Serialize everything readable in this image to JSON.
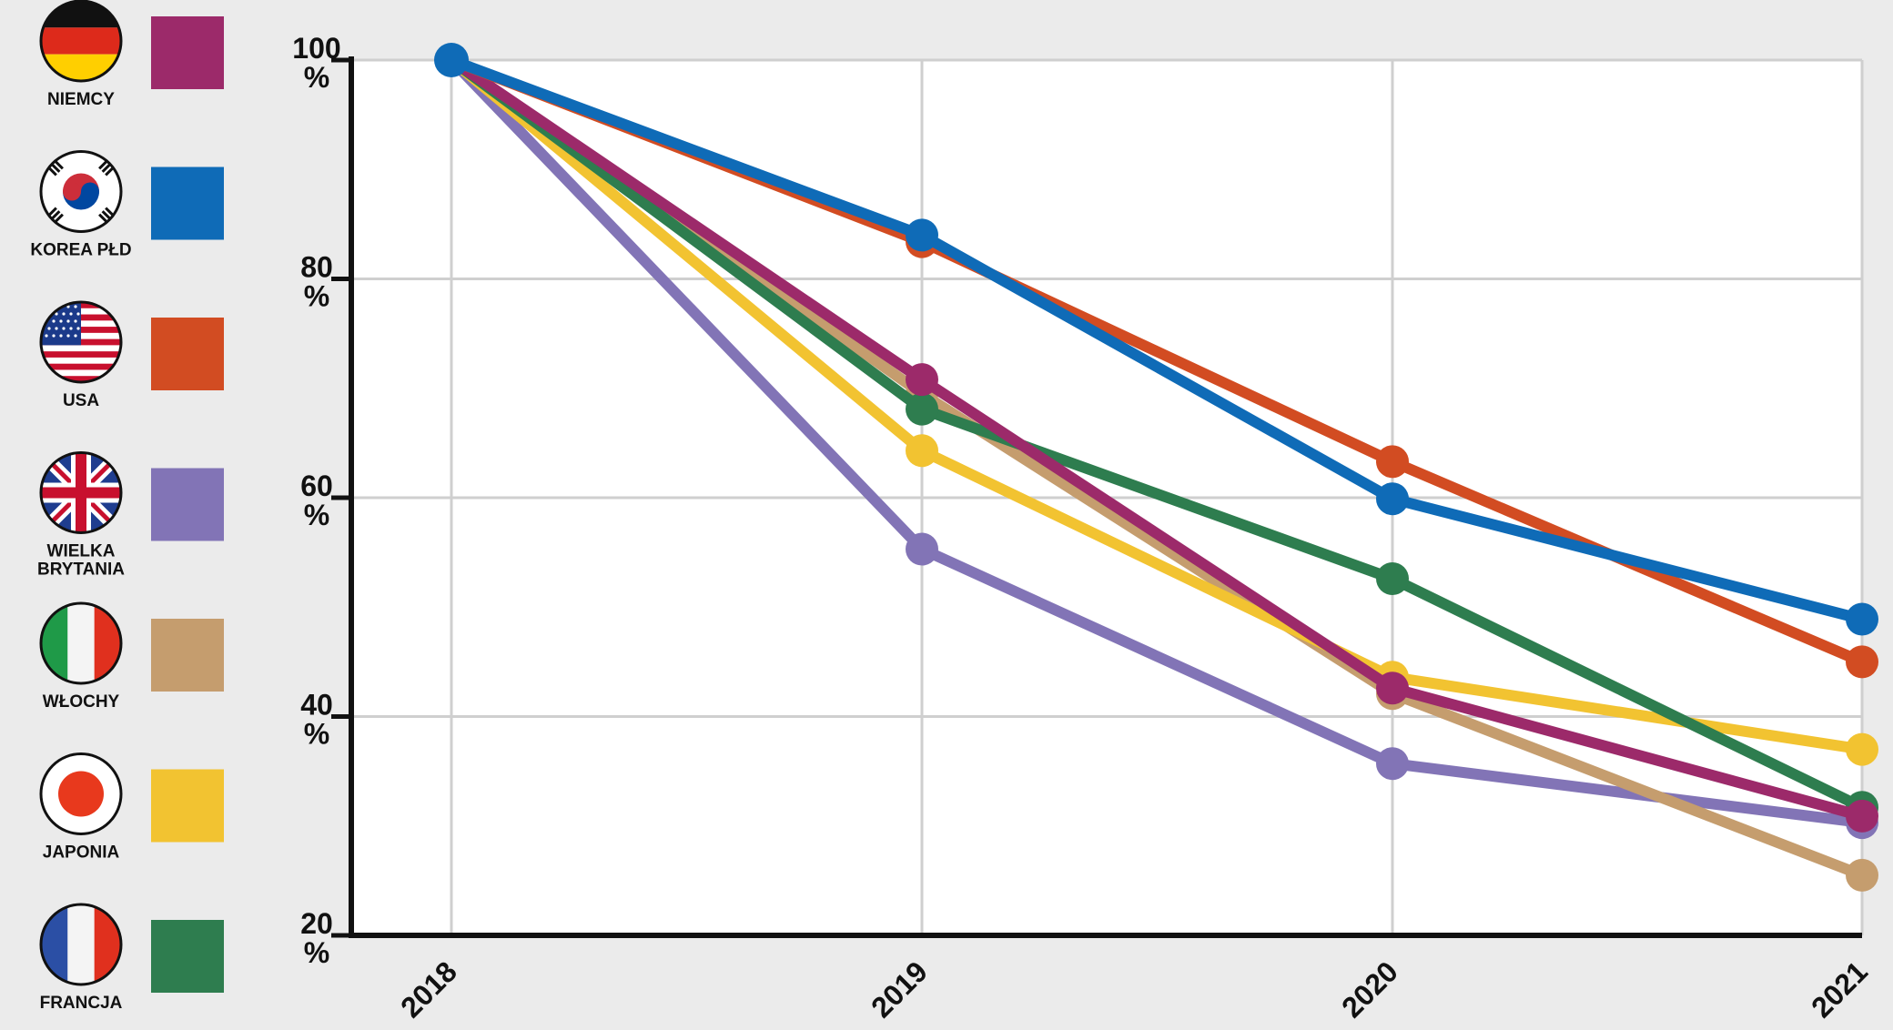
{
  "chart_data": {
    "type": "line",
    "x": [
      "2018",
      "2019",
      "2020",
      "2021"
    ],
    "ylim": [
      20,
      100
    ],
    "yticks": [
      100,
      80,
      60,
      40,
      20
    ],
    "ytick_unit": "%",
    "grid": true,
    "legend_position": "left",
    "series": [
      {
        "name": "NIEMCY",
        "flag": "germany-flag",
        "color": "#9c2a6a",
        "values": [
          100,
          70.8,
          42.6,
          30.9
        ]
      },
      {
        "name": "KOREA PŁD",
        "flag": "south-korea-flag",
        "color": "#0f6bb7",
        "values": [
          100,
          84.0,
          59.9,
          48.9
        ]
      },
      {
        "name": "USA",
        "flag": "usa-flag",
        "color": "#d24c22",
        "values": [
          100,
          83.4,
          63.3,
          45.0
        ]
      },
      {
        "name": "WIELKA BRYTANIA",
        "flag": "uk-flag",
        "color": "#8274b6",
        "values": [
          100,
          55.3,
          35.7,
          30.3
        ]
      },
      {
        "name": "WŁOCHY",
        "flag": "italy-flag",
        "color": "#c59d6e",
        "values": [
          100,
          69.5,
          42.1,
          25.5
        ]
      },
      {
        "name": "JAPONIA",
        "flag": "japan-flag",
        "color": "#f2c331",
        "values": [
          100,
          64.3,
          43.6,
          37.0
        ]
      },
      {
        "name": "FRANCJA",
        "flag": "france-flag",
        "color": "#2e7d4f",
        "values": [
          100,
          68.1,
          52.6,
          31.7
        ]
      }
    ]
  }
}
